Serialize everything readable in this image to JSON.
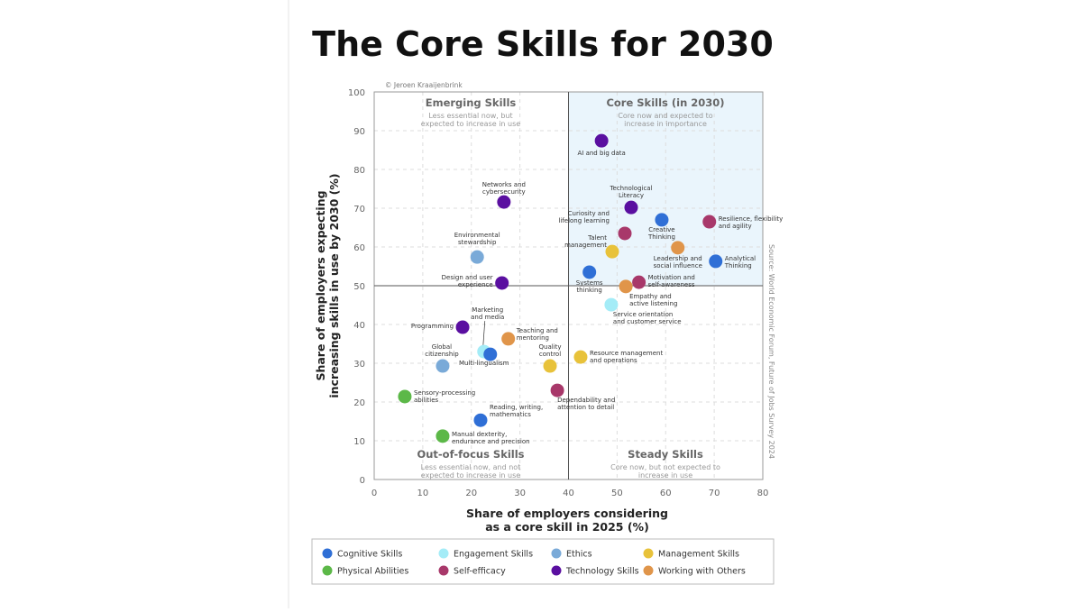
{
  "chart_data": {
    "type": "scatter",
    "title": "The Core Skills for 2030",
    "credit": "© Jeroen Kraaijenbrink",
    "source": "Source: World Economic Forum, Future of Jobs Survey 2024",
    "xlabel": [
      "Share of employers considering",
      "as a core skill in 2025 (%)"
    ],
    "ylabel": [
      "Share of employers expecting",
      "increasing skills in use by 2030 (%)"
    ],
    "xlim": [
      0,
      80
    ],
    "ylim": [
      0,
      100
    ],
    "xticks": [
      "0",
      "10",
      "20",
      "30",
      "40",
      "50",
      "60",
      "70",
      "80"
    ],
    "yticks": [
      "0",
      "10",
      "20",
      "30",
      "40",
      "50",
      "60",
      "70",
      "80",
      "90",
      "100"
    ],
    "grid": true,
    "quadrants": [
      {
        "title": "Emerging Skills",
        "subtitle": [
          "Less essential now, but",
          "expected to increase in use"
        ]
      },
      {
        "title": "Core Skills (in 2030)",
        "subtitle": [
          "Core now and expected to",
          "increase in importance"
        ]
      },
      {
        "title": "Out-of-focus Skills",
        "subtitle": [
          "Less essential now, and not",
          "expected to increase in use"
        ]
      },
      {
        "title": "Steady Skills",
        "subtitle": [
          "Core now, but not expected to",
          "increase in use"
        ]
      }
    ],
    "quadrant_split": {
      "x": 40,
      "y": 50
    },
    "categories": [
      {
        "name": "Cognitive Skills",
        "color": "#2f6fd6"
      },
      {
        "name": "Engagement Skills",
        "color": "#a4ecf7"
      },
      {
        "name": "Ethics",
        "color": "#7aaad8"
      },
      {
        "name": "Management Skills",
        "color": "#e8c23a"
      },
      {
        "name": "Physical Abilities",
        "color": "#5cb848"
      },
      {
        "name": "Self-efficacy",
        "color": "#a8386a"
      },
      {
        "name": "Technology Skills",
        "color": "#5a0fa0"
      },
      {
        "name": "Working with Others",
        "color": "#e0954a"
      }
    ],
    "legend_placement": "bottom",
    "points": [
      {
        "label": [
          "AI and big data"
        ],
        "x": 46.8,
        "y": 87.4,
        "cat": 6
      },
      {
        "label": [
          "Networks and",
          "cybersecurity"
        ],
        "x": 26.7,
        "y": 71.6,
        "cat": 6
      },
      {
        "label": [
          "Technological",
          "Literacy"
        ],
        "x": 52.9,
        "y": 70.2,
        "cat": 6
      },
      {
        "label": [
          "Creative",
          "Thinking"
        ],
        "x": 59.2,
        "y": 67.0,
        "cat": 0
      },
      {
        "label": [
          "Resilience, flexibility",
          "and agility"
        ],
        "x": 69.0,
        "y": 66.5,
        "cat": 5
      },
      {
        "label": [
          "Curiosity and",
          "lifelong learning"
        ],
        "x": 51.6,
        "y": 63.5,
        "cat": 5
      },
      {
        "label": [
          "Environmental",
          "stewardship"
        ],
        "x": 21.2,
        "y": 57.4,
        "cat": 2
      },
      {
        "label": [
          "Talent",
          "management"
        ],
        "x": 49.0,
        "y": 58.8,
        "cat": 3
      },
      {
        "label": [
          "Leadership and",
          "social influence"
        ],
        "x": 62.5,
        "y": 59.8,
        "cat": 7
      },
      {
        "label": [
          "Analytical",
          "Thinking"
        ],
        "x": 70.3,
        "y": 56.3,
        "cat": 0
      },
      {
        "label": [
          "Systems",
          "thinking"
        ],
        "x": 44.3,
        "y": 53.5,
        "cat": 0
      },
      {
        "label": [
          "Design and user",
          "experience"
        ],
        "x": 26.3,
        "y": 50.7,
        "cat": 6
      },
      {
        "label": [
          "Motivation and",
          "self-awareness"
        ],
        "x": 54.5,
        "y": 50.9,
        "cat": 5
      },
      {
        "label": [
          "Empathy and",
          "active listening"
        ],
        "x": 51.8,
        "y": 49.8,
        "cat": 7
      },
      {
        "label": [
          "Service orientation",
          "and customer service"
        ],
        "x": 48.8,
        "y": 45.1,
        "cat": 1
      },
      {
        "label": [
          "Programming"
        ],
        "x": 18.2,
        "y": 39.3,
        "cat": 6
      },
      {
        "label": [
          "Teaching and",
          "mentoring"
        ],
        "x": 27.6,
        "y": 36.3,
        "cat": 7
      },
      {
        "label": [
          "Marketing",
          "and media"
        ],
        "x": 22.6,
        "y": 33.0,
        "cat": 1
      },
      {
        "label": [
          "Multi-lingualism"
        ],
        "x": 23.9,
        "y": 32.3,
        "cat": 0
      },
      {
        "label": [
          "Global",
          "citizenship"
        ],
        "x": 14.1,
        "y": 29.3,
        "cat": 2
      },
      {
        "label": [
          "Quality",
          "control"
        ],
        "x": 36.2,
        "y": 29.3,
        "cat": 3
      },
      {
        "label": [
          "Resource management",
          "and operations"
        ],
        "x": 42.5,
        "y": 31.6,
        "cat": 3
      },
      {
        "label": [
          "Dependability and",
          "attention to detail"
        ],
        "x": 37.7,
        "y": 23.0,
        "cat": 5
      },
      {
        "label": [
          "Sensory-processing",
          "abilities"
        ],
        "x": 6.3,
        "y": 21.4,
        "cat": 4
      },
      {
        "label": [
          "Reading, writing,",
          "mathematics"
        ],
        "x": 21.9,
        "y": 15.3,
        "cat": 0
      },
      {
        "label": [
          "Manual dexterity,",
          "endurance and precision"
        ],
        "x": 14.1,
        "y": 11.2,
        "cat": 4
      }
    ]
  }
}
